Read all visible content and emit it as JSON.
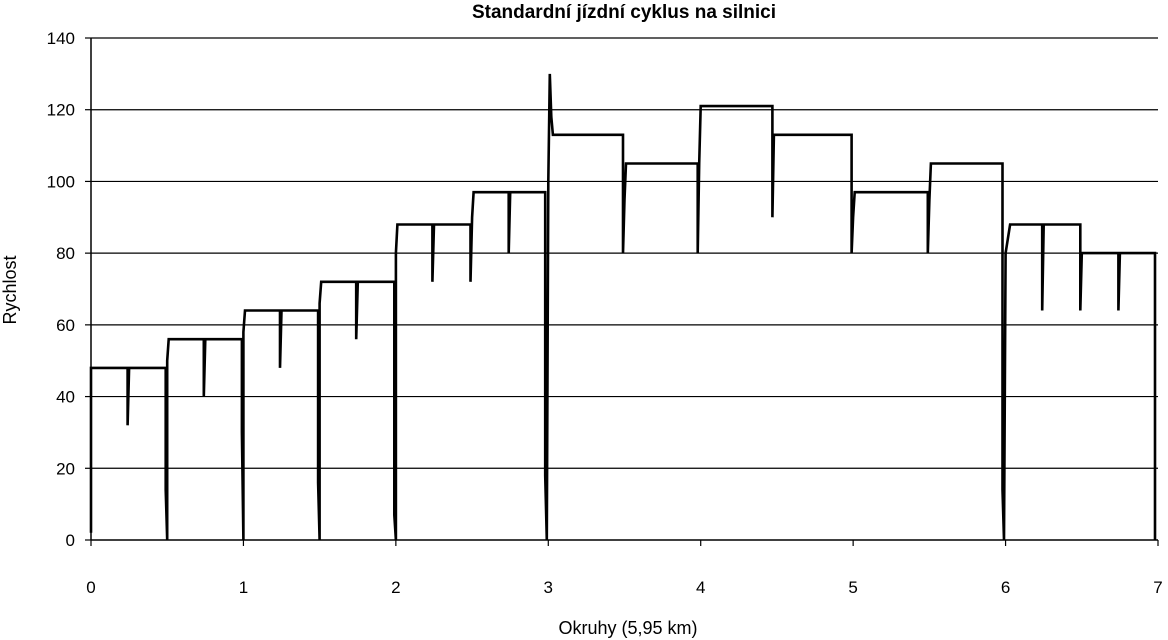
{
  "chart_data": {
    "type": "line",
    "title": "Standardní jízdní cyklus na silnici",
    "xlabel": "Okruhy (5,95 km)",
    "ylabel": "Rychlost",
    "xlim": [
      0,
      7
    ],
    "ylim": [
      0,
      140
    ],
    "xticks": [
      0,
      1,
      2,
      3,
      4,
      5,
      6,
      7
    ],
    "yticks": [
      0,
      20,
      40,
      60,
      80,
      100,
      120,
      140
    ],
    "grid": "horizontal",
    "series": [
      {
        "values": [
          [
            0,
            2
          ],
          [
            0,
            48
          ],
          [
            0.24,
            48
          ],
          [
            0.24,
            32
          ],
          [
            0.25,
            48
          ],
          [
            0.49,
            48
          ],
          [
            0.49,
            14
          ],
          [
            0.5,
            0
          ],
          [
            0.5,
            50
          ],
          [
            0.51,
            56
          ],
          [
            0.74,
            56
          ],
          [
            0.74,
            40
          ],
          [
            0.75,
            56
          ],
          [
            0.99,
            56
          ],
          [
            0.99,
            30
          ],
          [
            1.0,
            0
          ],
          [
            1.0,
            58
          ],
          [
            1.01,
            64
          ],
          [
            1.24,
            64
          ],
          [
            1.24,
            48
          ],
          [
            1.25,
            64
          ],
          [
            1.49,
            64
          ],
          [
            1.49,
            16
          ],
          [
            1.5,
            0
          ],
          [
            1.5,
            66
          ],
          [
            1.51,
            72
          ],
          [
            1.74,
            72
          ],
          [
            1.74,
            56
          ],
          [
            1.75,
            72
          ],
          [
            1.99,
            72
          ],
          [
            1.99,
            7
          ],
          [
            2.0,
            0
          ],
          [
            2.0,
            80
          ],
          [
            2.01,
            88
          ],
          [
            2.24,
            88
          ],
          [
            2.24,
            72
          ],
          [
            2.25,
            88
          ],
          [
            2.49,
            88
          ],
          [
            2.49,
            72
          ],
          [
            2.5,
            90
          ],
          [
            2.51,
            97
          ],
          [
            2.74,
            97
          ],
          [
            2.74,
            80
          ],
          [
            2.75,
            97
          ],
          [
            2.98,
            97
          ],
          [
            2.98,
            18
          ],
          [
            2.99,
            0
          ],
          [
            3.0,
            100
          ],
          [
            3.01,
            130
          ],
          [
            3.02,
            118
          ],
          [
            3.03,
            113
          ],
          [
            3.49,
            113
          ],
          [
            3.49,
            80
          ],
          [
            3.5,
            95
          ],
          [
            3.51,
            105
          ],
          [
            3.98,
            105
          ],
          [
            3.98,
            80
          ],
          [
            3.99,
            105
          ],
          [
            4.0,
            121
          ],
          [
            4.47,
            121
          ],
          [
            4.47,
            90
          ],
          [
            4.48,
            113
          ],
          [
            4.99,
            113
          ],
          [
            4.99,
            80
          ],
          [
            5.0,
            90
          ],
          [
            5.01,
            97
          ],
          [
            5.49,
            97
          ],
          [
            5.49,
            80
          ],
          [
            5.5,
            95
          ],
          [
            5.51,
            105
          ],
          [
            5.98,
            105
          ],
          [
            5.98,
            14
          ],
          [
            5.99,
            0
          ],
          [
            6.0,
            80
          ],
          [
            6.03,
            88
          ],
          [
            6.24,
            88
          ],
          [
            6.24,
            64
          ],
          [
            6.25,
            88
          ],
          [
            6.49,
            88
          ],
          [
            6.49,
            64
          ],
          [
            6.5,
            80
          ],
          [
            6.74,
            80
          ],
          [
            6.74,
            64
          ],
          [
            6.75,
            80
          ],
          [
            6.98,
            80
          ],
          [
            6.98,
            0
          ]
        ],
        "color": "#000000"
      }
    ]
  }
}
